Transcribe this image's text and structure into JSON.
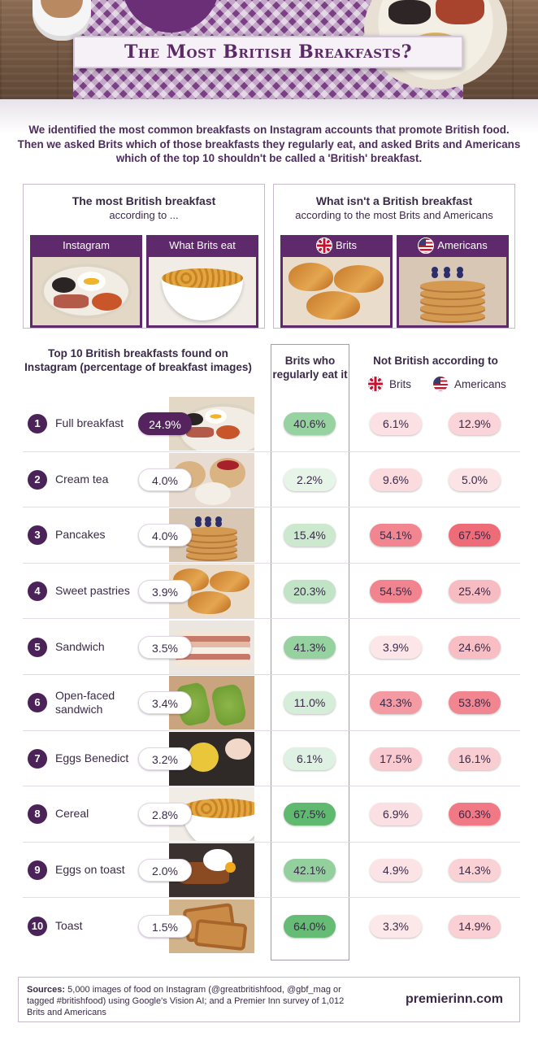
{
  "header": {
    "title": "The Most British Breakfasts?",
    "intro": "We identified the most common breakfasts on Instagram accounts that promote British food. Then we asked Brits which of those breakfasts they regularly eat, and asked Brits and Americans which of the top 10 shouldn't be called a 'British' breakfast."
  },
  "panels": {
    "left": {
      "title": "The most British breakfast",
      "subtitle": "according to ...",
      "cards": [
        {
          "label": "Instagram",
          "image": "full-breakfast"
        },
        {
          "label": "What Brits eat",
          "image": "cereal"
        }
      ]
    },
    "right": {
      "title": "What isn't a British breakfast",
      "subtitle": "according to the most Brits and Americans",
      "cards": [
        {
          "label": "Brits",
          "flag": "uk-flag-icon",
          "image": "sweet-pastries"
        },
        {
          "label": "Americans",
          "flag": "us-flag-icon",
          "image": "pancakes"
        }
      ]
    }
  },
  "table_headers": {
    "left": "Top 10 British breakfasts found on Instagram (percentage of breakfast images)",
    "brits_eat": "Brits who regularly eat it",
    "not_british": "Not British according to",
    "brits": "Brits",
    "americans": "Americans"
  },
  "colors": {
    "purple": "#55245f",
    "green_scale": [
      "#ffffff",
      "#5fb96e"
    ],
    "red_scale": [
      "#ffffff",
      "#ee6b78"
    ]
  },
  "chart_data": {
    "type": "table",
    "title": "The Most British Breakfasts?",
    "columns": [
      "Breakfast",
      "Instagram share",
      "Brits who regularly eat it",
      "Not British according to Brits",
      "Not British according to Americans"
    ],
    "rows": [
      {
        "rank": "1",
        "name": "Full breakfast",
        "image": "full-breakfast",
        "instagram": "24.9%",
        "eat": "40.6%",
        "brits": "6.1%",
        "americans": "12.9%",
        "eat_v": 40.6,
        "brits_v": 6.1,
        "americans_v": 12.9
      },
      {
        "rank": "2",
        "name": "Cream tea",
        "image": "scone",
        "instagram": "4.0%",
        "eat": "2.2%",
        "brits": "9.6%",
        "americans": "5.0%",
        "eat_v": 2.2,
        "brits_v": 9.6,
        "americans_v": 5.0
      },
      {
        "rank": "3",
        "name": "Pancakes",
        "image": "pancakes",
        "instagram": "4.0%",
        "eat": "15.4%",
        "brits": "54.1%",
        "americans": "67.5%",
        "eat_v": 15.4,
        "brits_v": 54.1,
        "americans_v": 67.5
      },
      {
        "rank": "4",
        "name": "Sweet pastries",
        "image": "sweet-pastries",
        "instagram": "3.9%",
        "eat": "20.3%",
        "brits": "54.5%",
        "americans": "25.4%",
        "eat_v": 20.3,
        "brits_v": 54.5,
        "americans_v": 25.4
      },
      {
        "rank": "5",
        "name": "Sandwich",
        "image": "sandwich",
        "instagram": "3.5%",
        "eat": "41.3%",
        "brits": "3.9%",
        "americans": "24.6%",
        "eat_v": 41.3,
        "brits_v": 3.9,
        "americans_v": 24.6
      },
      {
        "rank": "6",
        "name": "Open-faced sandwich",
        "image": "avocado-toast",
        "instagram": "3.4%",
        "eat": "11.0%",
        "brits": "43.3%",
        "americans": "53.8%",
        "eat_v": 11.0,
        "brits_v": 43.3,
        "americans_v": 53.8
      },
      {
        "rank": "7",
        "name": "Eggs Benedict",
        "image": "eggs-benedict",
        "instagram": "3.2%",
        "eat": "6.1%",
        "brits": "17.5%",
        "americans": "16.1%",
        "eat_v": 6.1,
        "brits_v": 17.5,
        "americans_v": 16.1
      },
      {
        "rank": "8",
        "name": "Cereal",
        "image": "cereal",
        "instagram": "2.8%",
        "eat": "67.5%",
        "brits": "6.9%",
        "americans": "60.3%",
        "eat_v": 67.5,
        "brits_v": 6.9,
        "americans_v": 60.3
      },
      {
        "rank": "9",
        "name": "Eggs on toast",
        "image": "eggs-on-toast",
        "instagram": "2.0%",
        "eat": "42.1%",
        "brits": "4.9%",
        "americans": "14.3%",
        "eat_v": 42.1,
        "brits_v": 4.9,
        "americans_v": 14.3
      },
      {
        "rank": "10",
        "name": "Toast",
        "image": "toast",
        "instagram": "1.5%",
        "eat": "64.0%",
        "brits": "3.3%",
        "americans": "14.9%",
        "eat_v": 64.0,
        "brits_v": 3.3,
        "americans_v": 14.9
      }
    ]
  },
  "footer": {
    "sources_label": "Sources:",
    "sources_text": "5,000 images of food on Instagram (@greatbritishfood, @gbf_mag or tagged #britishfood) using Google's Vision AI; and a Premier Inn survey of 1,012 Brits and Americans",
    "brand": "premierinn.com"
  }
}
